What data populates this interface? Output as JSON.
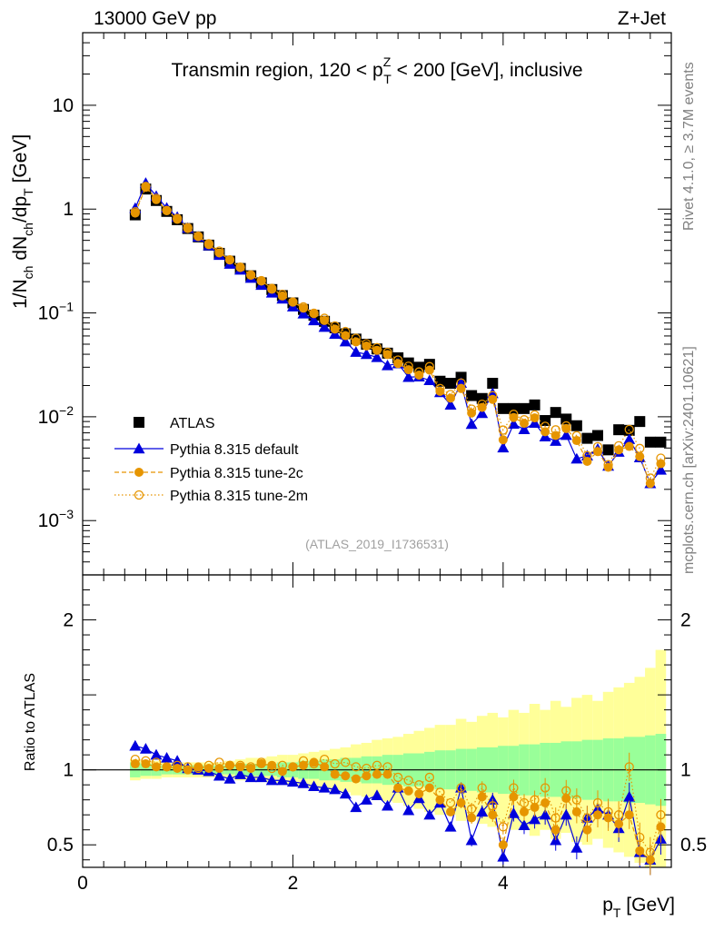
{
  "header": {
    "left_label": "13000 GeV pp",
    "right_label": "Z+Jet",
    "title_pre": "Transmin region, 120 < p",
    "title_sup": "Z",
    "title_sub": "T",
    "title_post": " < 200 [GeV], inclusive"
  },
  "side": {
    "rivet": "Rivet 4.1.0, ≥ 3.7M events",
    "mcplots": "mcplots.cern.ch [arXiv:2401.10621]"
  },
  "watermark": "(ATLAS_2019_I1736531)",
  "ylabel_main": {
    "p1": "1/N",
    "s1": "ch",
    "p2": " dN",
    "s2": "ch",
    "p3": "/dp",
    "s3": "T",
    "p4": " [GeV]"
  },
  "ylabel_ratio": "Ratio to ATLAS",
  "xlabel": {
    "p1": "p",
    "s1": "T",
    "p2": " [GeV]"
  },
  "colors": {
    "atlas": "#000000",
    "default": "#0000dd",
    "tune2c": "#e69500",
    "tune2m": "#e69500",
    "band_inner": "#99ff99",
    "band_outer": "#ffff99"
  },
  "legend": [
    {
      "key": "atlas",
      "label": "ATLAS"
    },
    {
      "key": "default",
      "label": "Pythia 8.315 default"
    },
    {
      "key": "tune2c",
      "label": "Pythia 8.315 tune-2c"
    },
    {
      "key": "tune2m",
      "label": "Pythia 8.315 tune-2m"
    }
  ],
  "chart_data": {
    "type": "scatter",
    "x_label": "pT [GeV]",
    "xlim": [
      0,
      5.6
    ],
    "main_ylim": [
      0.0003,
      50
    ],
    "main_yscale": "log",
    "ratio_ylim": [
      0.35,
      2.3
    ],
    "x_ticks": [
      0,
      2,
      4
    ],
    "main_y_ticks": [
      {
        "v": 10,
        "m": "10",
        "e": ""
      },
      {
        "v": 1,
        "m": "1",
        "e": ""
      },
      {
        "v": 0.1,
        "m": "10",
        "e": "−1"
      },
      {
        "v": 0.01,
        "m": "10",
        "e": "−2"
      },
      {
        "v": 0.001,
        "m": "10",
        "e": "−3"
      }
    ],
    "ratio_y_ticks": [
      0.5,
      1,
      2
    ],
    "x": [
      0.5,
      0.6,
      0.7,
      0.8,
      0.9,
      1.0,
      1.1,
      1.2,
      1.3,
      1.4,
      1.5,
      1.6,
      1.7,
      1.8,
      1.9,
      2.0,
      2.1,
      2.2,
      2.3,
      2.4,
      2.5,
      2.6,
      2.7,
      2.8,
      2.9,
      3.0,
      3.1,
      3.2,
      3.3,
      3.4,
      3.5,
      3.6,
      3.7,
      3.8,
      3.9,
      4.0,
      4.1,
      4.2,
      4.3,
      4.4,
      4.5,
      4.6,
      4.7,
      4.8,
      4.9,
      5.0,
      5.1,
      5.2,
      5.3,
      5.4,
      5.5
    ],
    "series": [
      {
        "name": "ATLAS",
        "values": [
          0.88,
          1.56,
          1.21,
          0.95,
          0.79,
          0.65,
          0.54,
          0.45,
          0.375,
          0.315,
          0.268,
          0.228,
          0.195,
          0.168,
          0.147,
          0.125,
          0.108,
          0.095,
          0.083,
          0.072,
          0.063,
          0.056,
          0.05,
          0.045,
          0.041,
          0.037,
          0.033,
          0.03,
          0.032,
          0.022,
          0.021,
          0.024,
          0.016,
          0.015,
          0.021,
          0.012,
          0.012,
          0.012,
          0.013,
          0.0092,
          0.011,
          0.0095,
          0.0082,
          0.0062,
          0.0066,
          0.0048,
          0.0075,
          0.0074,
          0.009,
          0.0057,
          0.0057
        ]
      },
      {
        "name": "Pythia 8.315 default",
        "ratio": [
          1.16,
          1.14,
          1.1,
          1.08,
          1.06,
          1.01,
          1.0,
          0.99,
          0.96,
          0.94,
          0.97,
          0.95,
          0.95,
          0.93,
          0.93,
          0.92,
          0.91,
          0.89,
          0.88,
          0.87,
          0.84,
          0.75,
          0.8,
          0.83,
          0.76,
          0.88,
          0.73,
          0.81,
          0.7,
          0.78,
          0.62,
          0.88,
          0.53,
          0.72,
          0.8,
          0.42,
          0.71,
          0.63,
          0.67,
          0.7,
          0.53,
          0.7,
          0.48,
          0.68,
          0.74,
          0.7,
          0.61,
          0.82,
          0.45,
          0.4,
          0.54
        ]
      },
      {
        "name": "Pythia 8.315 tune-2c",
        "ratio": [
          1.04,
          1.04,
          1.02,
          1.02,
          1.01,
          1.0,
          1.02,
          1.01,
          1.01,
          1.03,
          1.02,
          1.01,
          1.04,
          1.03,
          0.99,
          1.02,
          1.03,
          1.05,
          1.02,
          0.97,
          0.96,
          0.94,
          0.96,
          0.97,
          0.97,
          0.88,
          0.86,
          0.84,
          0.88,
          0.8,
          0.72,
          0.78,
          0.68,
          0.82,
          0.7,
          0.5,
          0.82,
          0.72,
          0.75,
          0.78,
          0.6,
          0.81,
          0.72,
          0.6,
          0.7,
          0.68,
          0.64,
          0.7,
          0.46,
          0.4,
          0.62
        ]
      },
      {
        "name": "Pythia 8.315 tune-2m",
        "ratio": [
          1.07,
          1.06,
          1.05,
          1.02,
          1.03,
          1.02,
          1.01,
          1.03,
          1.05,
          1.03,
          1.03,
          1.02,
          1.05,
          1.01,
          1.03,
          1.02,
          1.06,
          1.04,
          1.07,
          1.04,
          1.05,
          1.02,
          1.01,
          1.03,
          1.02,
          0.95,
          0.93,
          0.9,
          0.95,
          0.85,
          0.78,
          0.88,
          0.74,
          0.88,
          0.76,
          0.62,
          0.88,
          0.78,
          0.8,
          0.88,
          0.68,
          0.86,
          0.8,
          0.68,
          0.78,
          0.72,
          0.7,
          1.02,
          0.55,
          0.45,
          0.7
        ]
      }
    ],
    "band_inner_half": [
      0.05,
      0.04,
      0.04,
      0.03,
      0.03,
      0.03,
      0.03,
      0.03,
      0.03,
      0.03,
      0.04,
      0.04,
      0.04,
      0.04,
      0.05,
      0.05,
      0.06,
      0.06,
      0.07,
      0.07,
      0.08,
      0.08,
      0.09,
      0.09,
      0.1,
      0.1,
      0.11,
      0.11,
      0.12,
      0.13,
      0.13,
      0.14,
      0.14,
      0.15,
      0.15,
      0.16,
      0.16,
      0.17,
      0.17,
      0.18,
      0.18,
      0.19,
      0.19,
      0.2,
      0.2,
      0.21,
      0.21,
      0.22,
      0.22,
      0.23,
      0.24
    ],
    "band_outer_half": [
      0.07,
      0.06,
      0.06,
      0.05,
      0.05,
      0.05,
      0.05,
      0.05,
      0.05,
      0.06,
      0.07,
      0.08,
      0.08,
      0.09,
      0.1,
      0.1,
      0.11,
      0.12,
      0.13,
      0.14,
      0.15,
      0.17,
      0.18,
      0.2,
      0.21,
      0.22,
      0.24,
      0.26,
      0.28,
      0.3,
      0.3,
      0.34,
      0.32,
      0.36,
      0.38,
      0.35,
      0.4,
      0.38,
      0.44,
      0.4,
      0.46,
      0.42,
      0.48,
      0.5,
      0.46,
      0.52,
      0.55,
      0.58,
      0.62,
      0.68,
      0.8
    ]
  }
}
